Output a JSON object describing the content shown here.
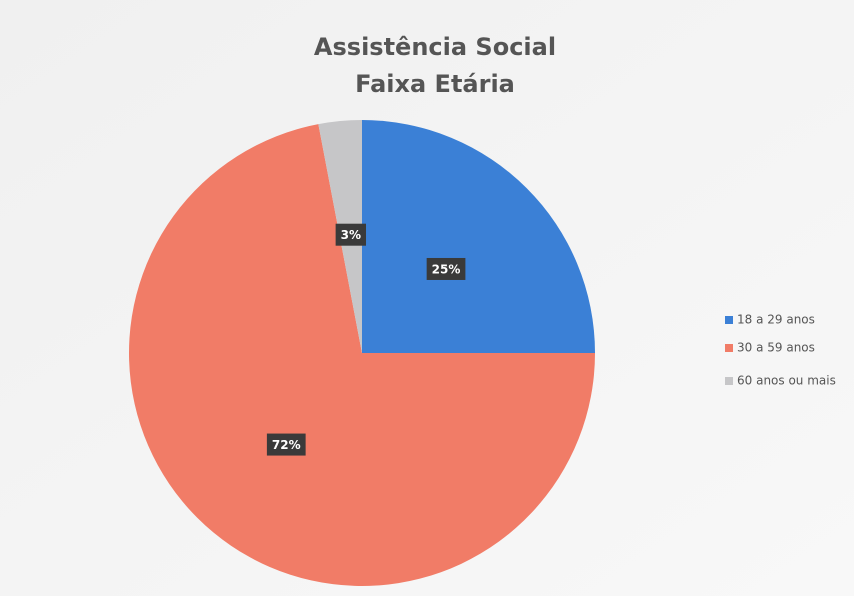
{
  "chart_data": {
    "type": "pie",
    "title": [
      "Assistência Social",
      "Faixa Etária"
    ],
    "categories": [
      "18 a 29 anos",
      "30 a 59 anos",
      "60 anos ou mais"
    ],
    "values": [
      25,
      72,
      3
    ],
    "value_labels": [
      "25%",
      "72%",
      "3%"
    ],
    "colors": [
      "#3b80d6",
      "#f17c67",
      "#c6c6c8"
    ],
    "legend": "right"
  }
}
